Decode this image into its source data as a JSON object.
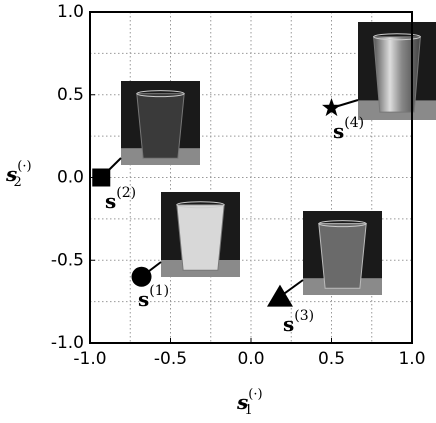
{
  "chart_data": {
    "type": "scatter",
    "xlim": [
      -1.0,
      1.0
    ],
    "ylim": [
      -1.0,
      1.0
    ],
    "xticks": [
      {
        "value": -1.0,
        "label": "-1.0"
      },
      {
        "value": -0.5,
        "label": "-0.5"
      },
      {
        "value": 0.0,
        "label": "0.0"
      },
      {
        "value": 0.5,
        "label": "0.5"
      },
      {
        "value": 1.0,
        "label": "1.0"
      }
    ],
    "yticks": [
      {
        "value": -1.0,
        "label": "-1.0"
      },
      {
        "value": -0.5,
        "label": "-0.5"
      },
      {
        "value": 0.0,
        "label": "0.0"
      },
      {
        "value": 0.5,
        "label": "0.5"
      },
      {
        "value": 1.0,
        "label": "1.0"
      }
    ],
    "xminor": [
      -0.75,
      -0.25,
      0.25,
      0.75
    ],
    "yminor": [
      -0.75,
      -0.25,
      0.25,
      0.75
    ],
    "grid": true,
    "xlabel": {
      "base": "s",
      "sub": "1",
      "sup": "(·)"
    },
    "ylabel": {
      "base": "s",
      "sub": "2",
      "sup": "(·)"
    },
    "color": "#000000",
    "points": [
      {
        "label": "s",
        "label_sup": "(1)",
        "marker": "circle",
        "x": -0.68,
        "y": -0.6
      },
      {
        "label": "s",
        "label_sup": "(2)",
        "marker": "square",
        "x": -0.93,
        "y": 0.0
      },
      {
        "label": "s",
        "label_sup": "(3)",
        "marker": "triangle",
        "x": 0.18,
        "y": -0.72
      },
      {
        "label": "s",
        "label_sup": "(4)",
        "marker": "star",
        "x": 0.5,
        "y": 0.42
      }
    ]
  }
}
